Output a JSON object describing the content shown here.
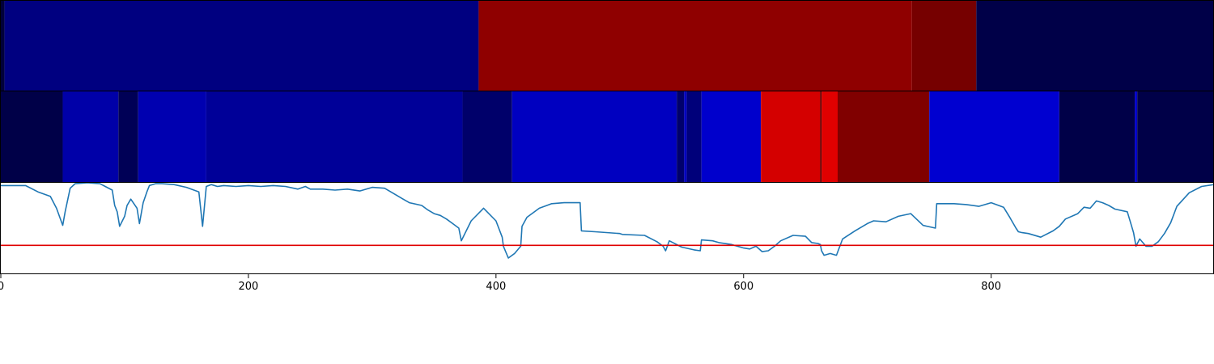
{
  "chart_data": {
    "type": "heatmap",
    "xlim": [
      0,
      980
    ],
    "xticks": [
      0,
      200,
      400,
      600,
      800
    ],
    "tick_labels": [
      "0",
      "200",
      "400",
      "600",
      "800"
    ],
    "grid": false,
    "panels": [
      {
        "name": "segmentation-track-1",
        "segments": [
          {
            "start": 0,
            "end": 3,
            "color": "#00003a"
          },
          {
            "start": 3,
            "end": 386,
            "color": "#000080"
          },
          {
            "start": 386,
            "end": 736,
            "color": "#8f0000"
          },
          {
            "start": 736,
            "end": 788,
            "color": "#760000"
          },
          {
            "start": 788,
            "end": 980,
            "color": "#000048"
          }
        ]
      },
      {
        "name": "segmentation-track-2",
        "segments": [
          {
            "start": 0,
            "end": 50,
            "color": "#000048"
          },
          {
            "start": 50,
            "end": 95,
            "color": "#0000a8"
          },
          {
            "start": 95,
            "end": 111,
            "color": "#000056"
          },
          {
            "start": 111,
            "end": 166,
            "color": "#0000b0"
          },
          {
            "start": 166,
            "end": 373,
            "color": "#000098"
          },
          {
            "start": 373,
            "end": 413,
            "color": "#00006a"
          },
          {
            "start": 413,
            "end": 546,
            "color": "#0000c0"
          },
          {
            "start": 546,
            "end": 552,
            "color": "#00006a"
          },
          {
            "start": 552,
            "end": 554,
            "color": "#0000c0"
          },
          {
            "start": 554,
            "end": 566,
            "color": "#00007a"
          },
          {
            "start": 566,
            "end": 614,
            "color": "#0000cc"
          },
          {
            "start": 614,
            "end": 662,
            "color": "#d40000"
          },
          {
            "start": 662,
            "end": 663,
            "color": "#400000"
          },
          {
            "start": 663,
            "end": 676,
            "color": "#e00000"
          },
          {
            "start": 676,
            "end": 750,
            "color": "#800000"
          },
          {
            "start": 750,
            "end": 855,
            "color": "#0000d0"
          },
          {
            "start": 855,
            "end": 916,
            "color": "#000048"
          },
          {
            "start": 916,
            "end": 918,
            "color": "#0000c8"
          },
          {
            "start": 918,
            "end": 980,
            "color": "#000048"
          }
        ]
      }
    ],
    "line_panel": {
      "ylim": [
        0,
        1
      ],
      "line_color": "#1f77b4",
      "threshold": 0.31,
      "threshold_color": "#e00000",
      "x": [
        0,
        20,
        30,
        40,
        45,
        50,
        52,
        56,
        60,
        70,
        80,
        90,
        92,
        94,
        96,
        100,
        102,
        105,
        110,
        112,
        115,
        118,
        120,
        125,
        130,
        140,
        150,
        160,
        163,
        166,
        170,
        175,
        180,
        190,
        200,
        210,
        220,
        230,
        240,
        246,
        250,
        260,
        270,
        280,
        290,
        300,
        310,
        320,
        325,
        330,
        340,
        345,
        350,
        355,
        360,
        365,
        370,
        372,
        380,
        390,
        400,
        405,
        406,
        410,
        415,
        420,
        421,
        425,
        435,
        445,
        455,
        465,
        468,
        469,
        480,
        500,
        502,
        520,
        530,
        535,
        537,
        540,
        550,
        560,
        565,
        566,
        575,
        580,
        590,
        595,
        600,
        605,
        610,
        615,
        620,
        625,
        630,
        640,
        650,
        655,
        660,
        662,
        663,
        665,
        670,
        675,
        680,
        690,
        700,
        705,
        715,
        725,
        735,
        745,
        755,
        756,
        770,
        780,
        790,
        800,
        810,
        815,
        820,
        822,
        825,
        830,
        840,
        850,
        855,
        860,
        870,
        875,
        880,
        885,
        890,
        895,
        900,
        910,
        915,
        917,
        920,
        925,
        930,
        935,
        940,
        945,
        950,
        960,
        970,
        980
      ],
      "y": [
        0.97,
        0.97,
        0.9,
        0.85,
        0.72,
        0.53,
        0.68,
        0.94,
        0.99,
        1.0,
        0.99,
        0.92,
        0.75,
        0.68,
        0.52,
        0.63,
        0.75,
        0.82,
        0.72,
        0.55,
        0.78,
        0.9,
        0.97,
        0.99,
        0.99,
        0.98,
        0.95,
        0.9,
        0.52,
        0.96,
        0.98,
        0.96,
        0.97,
        0.96,
        0.97,
        0.96,
        0.97,
        0.96,
        0.93,
        0.96,
        0.93,
        0.93,
        0.92,
        0.93,
        0.91,
        0.95,
        0.94,
        0.86,
        0.82,
        0.78,
        0.75,
        0.7,
        0.66,
        0.64,
        0.6,
        0.55,
        0.5,
        0.36,
        0.58,
        0.72,
        0.58,
        0.4,
        0.3,
        0.17,
        0.22,
        0.3,
        0.52,
        0.62,
        0.72,
        0.77,
        0.78,
        0.78,
        0.78,
        0.47,
        0.46,
        0.44,
        0.43,
        0.42,
        0.35,
        0.3,
        0.25,
        0.36,
        0.29,
        0.26,
        0.25,
        0.37,
        0.36,
        0.34,
        0.32,
        0.3,
        0.28,
        0.27,
        0.3,
        0.24,
        0.25,
        0.3,
        0.36,
        0.42,
        0.41,
        0.34,
        0.33,
        0.32,
        0.25,
        0.2,
        0.22,
        0.2,
        0.38,
        0.47,
        0.55,
        0.58,
        0.57,
        0.63,
        0.66,
        0.53,
        0.5,
        0.77,
        0.77,
        0.76,
        0.74,
        0.78,
        0.73,
        0.62,
        0.5,
        0.46,
        0.45,
        0.44,
        0.4,
        0.47,
        0.52,
        0.6,
        0.66,
        0.73,
        0.72,
        0.8,
        0.78,
        0.75,
        0.71,
        0.68,
        0.45,
        0.3,
        0.38,
        0.3,
        0.3,
        0.35,
        0.44,
        0.56,
        0.74,
        0.89,
        0.96,
        0.98,
        0.97
      ]
    }
  }
}
